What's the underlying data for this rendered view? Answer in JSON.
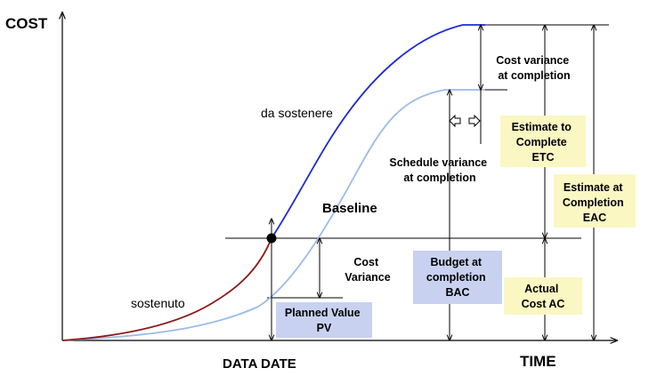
{
  "axes": {
    "y_label": "COST",
    "x_label": "TIME",
    "data_date_label": "DATA DATE"
  },
  "curves": {
    "actual_label": "sostenuto",
    "forecast_label": "da sostenere",
    "baseline_label": "Baseline",
    "colors": {
      "actual": "#8b1a1a",
      "forecast": "#1e2ad6",
      "baseline": "#9bbbe8"
    }
  },
  "annotations": {
    "cost_variance_at_completion": [
      "Cost variance",
      "at completion"
    ],
    "schedule_variance_at_completion": [
      "Schedule variance",
      "at completion"
    ],
    "cost_variance": [
      "Cost",
      "Variance"
    ]
  },
  "boxes": {
    "planned_value": {
      "lines": [
        "Planned Value",
        "PV"
      ],
      "color": "#c8d2f0"
    },
    "budget_at_completion": {
      "lines": [
        "Budget at",
        "completion",
        "BAC"
      ],
      "color": "#c8d2f0"
    },
    "estimate_to_complete": {
      "lines": [
        "Estimate to",
        "Complete",
        "ETC"
      ],
      "color": "#fbf7c3"
    },
    "estimate_at_completion": {
      "lines": [
        "Estimate at",
        "Completion",
        "EAC"
      ],
      "color": "#fbf7c3"
    },
    "actual_cost": {
      "lines": [
        "Actual",
        "Cost AC"
      ],
      "color": "#fbf7c3"
    }
  },
  "schedule_arrow_icons": [
    "left-hollow-arrow-icon",
    "right-hollow-arrow-icon"
  ]
}
